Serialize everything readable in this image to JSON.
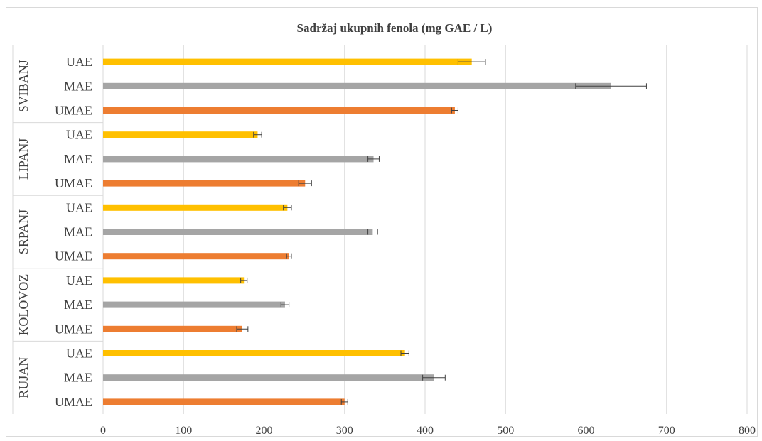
{
  "chart_data": {
    "type": "bar",
    "orientation": "horizontal",
    "title": "Sadržaj  ukupnih fenola (mg GAE / L)",
    "xlabel": "",
    "ylabel": "",
    "xlim": [
      0,
      800
    ],
    "x_ticks": [
      0,
      100,
      200,
      300,
      400,
      500,
      600,
      700,
      800
    ],
    "grid": "vertical",
    "legend": "none",
    "colors": {
      "UAE": "#ffc000",
      "MAE": "#a5a5a5",
      "UMAE": "#ed7d31",
      "error_bar": "#404040",
      "gridline": "#d9d9d9"
    },
    "groups": [
      {
        "name": "SVIBANJ",
        "bars": [
          {
            "category": "UAE",
            "value": 458,
            "error": 17
          },
          {
            "category": "MAE",
            "value": 631,
            "error": 44
          },
          {
            "category": "UMAE",
            "value": 437,
            "error": 4
          }
        ]
      },
      {
        "name": "LIPANJ",
        "bars": [
          {
            "category": "UAE",
            "value": 192,
            "error": 5
          },
          {
            "category": "MAE",
            "value": 336,
            "error": 7
          },
          {
            "category": "UMAE",
            "value": 251,
            "error": 8
          }
        ]
      },
      {
        "name": "SRPANJ",
        "bars": [
          {
            "category": "UAE",
            "value": 229,
            "error": 5
          },
          {
            "category": "MAE",
            "value": 335,
            "error": 6
          },
          {
            "category": "UMAE",
            "value": 231,
            "error": 3
          }
        ]
      },
      {
        "name": "KOLOVOZ",
        "bars": [
          {
            "category": "UAE",
            "value": 175,
            "error": 4
          },
          {
            "category": "MAE",
            "value": 226,
            "error": 5
          },
          {
            "category": "UMAE",
            "value": 173,
            "error": 7
          }
        ]
      },
      {
        "name": "RUJAN",
        "bars": [
          {
            "category": "UAE",
            "value": 375,
            "error": 5
          },
          {
            "category": "MAE",
            "value": 411,
            "error": 14
          },
          {
            "category": "UMAE",
            "value": 300,
            "error": 4
          }
        ]
      }
    ]
  }
}
